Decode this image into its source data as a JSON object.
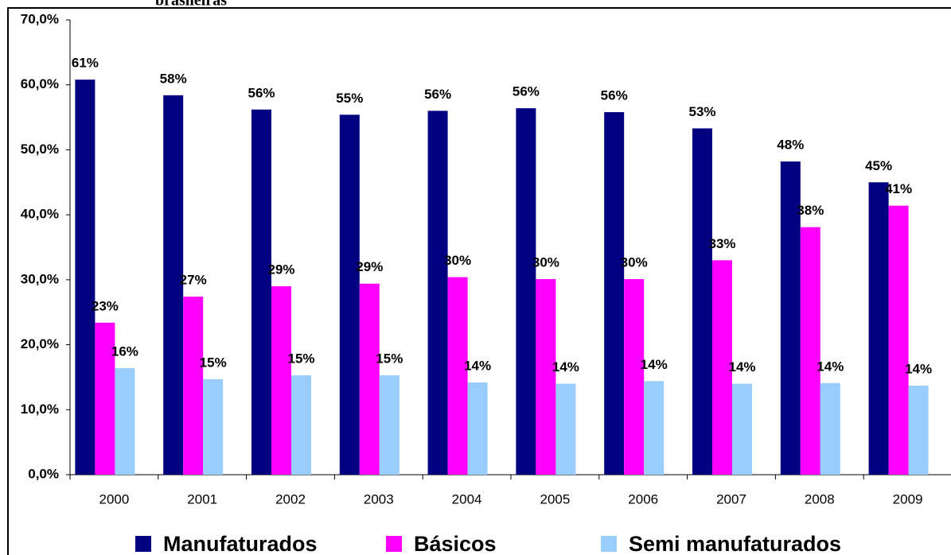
{
  "chart_data": {
    "type": "bar",
    "title": "brasileiras",
    "categories": [
      "2000",
      "2001",
      "2002",
      "2003",
      "2004",
      "2005",
      "2006",
      "2007",
      "2008",
      "2009"
    ],
    "series": [
      {
        "name": "Manufaturados",
        "color": "#000080",
        "values": [
          60.8,
          58.4,
          56.2,
          55.4,
          56.0,
          56.4,
          55.8,
          53.3,
          48.2,
          45.0
        ],
        "value_labels": [
          "61%",
          "58%",
          "56%",
          "55%",
          "56%",
          "56%",
          "56%",
          "53%",
          "48%",
          "45%"
        ]
      },
      {
        "name": "Básicos",
        "color": "#ff00ff",
        "values": [
          23.4,
          27.4,
          29.0,
          29.4,
          30.4,
          30.1,
          30.1,
          33.0,
          38.1,
          41.4
        ],
        "value_labels": [
          "23%",
          "27%",
          "29%",
          "29%",
          "30%",
          "30%",
          "30%",
          "33%",
          "38%",
          "41%"
        ]
      },
      {
        "name": "Semi manufaturados",
        "color": "#99ccff",
        "values": [
          16.4,
          14.7,
          15.3,
          15.3,
          14.2,
          14.0,
          14.4,
          14.0,
          14.1,
          13.7
        ],
        "value_labels": [
          "16%",
          "15%",
          "15%",
          "15%",
          "14%",
          "14%",
          "14%",
          "14%",
          "14%",
          "14%"
        ]
      }
    ],
    "ylim": [
      0,
      70
    ],
    "yticks": [
      {
        "value": 0,
        "label": "0,0%"
      },
      {
        "value": 10,
        "label": "10,0%"
      },
      {
        "value": 20,
        "label": "20,0%"
      },
      {
        "value": 30,
        "label": "30,0%"
      },
      {
        "value": 40,
        "label": "40,0%"
      },
      {
        "value": 50,
        "label": "50,0%"
      },
      {
        "value": 60,
        "label": "60,0%"
      },
      {
        "value": 70,
        "label": "70,0%"
      }
    ],
    "grid": false,
    "legend": "bottom"
  }
}
